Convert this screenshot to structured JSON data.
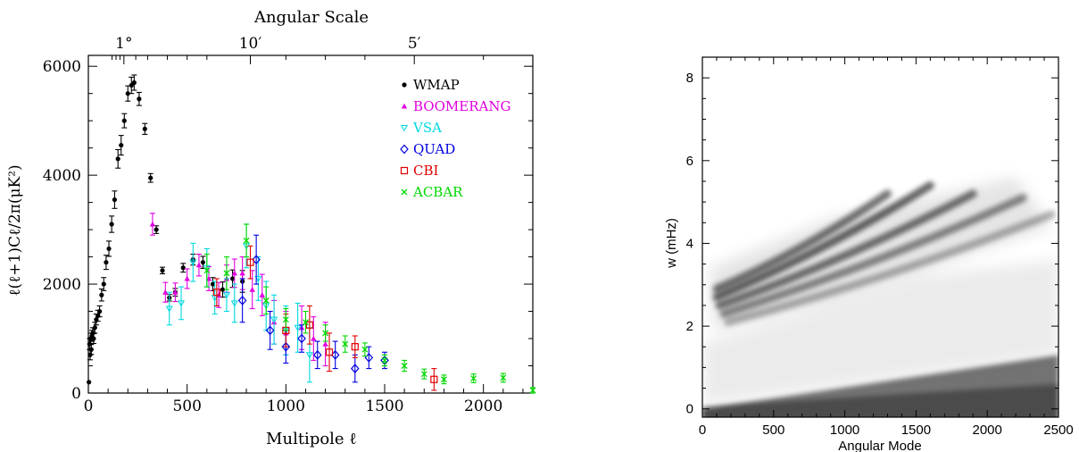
{
  "chart_data": [
    {
      "type": "scatter",
      "title": "",
      "top_axis_label": "Angular Scale",
      "top_ticks": [
        {
          "l": 180,
          "label": "1°"
        },
        {
          "l": 820,
          "label": "10′"
        },
        {
          "l": 1650,
          "label": "5′"
        }
      ],
      "xlabel": "Multipole ℓ",
      "ylabel": "ℓ(ℓ+1)Cℓ/2π(μK²)",
      "xlim": [
        0,
        2250
      ],
      "ylim": [
        0,
        6200
      ],
      "xticks": [
        0,
        500,
        1000,
        1500,
        2000
      ],
      "yticks": [
        0,
        2000,
        4000,
        6000
      ],
      "legend_position": "top-right",
      "series": [
        {
          "name": "WMAP",
          "color": "#000000",
          "marker": "dot",
          "points": [
            [
              3,
              200
            ],
            [
              6,
              900
            ],
            [
              9,
              700
            ],
            [
              12,
              1000
            ],
            [
              15,
              800
            ],
            [
              18,
              1050
            ],
            [
              22,
              1100
            ],
            [
              27,
              1000
            ],
            [
              33,
              1200
            ],
            [
              40,
              1350
            ],
            [
              48,
              1420
            ],
            [
              57,
              1500
            ],
            [
              67,
              1800
            ],
            [
              78,
              2000
            ],
            [
              90,
              2400
            ],
            [
              104,
              2650
            ],
            [
              118,
              3100
            ],
            [
              133,
              3550
            ],
            [
              150,
              4300
            ],
            [
              166,
              4550
            ],
            [
              182,
              5000
            ],
            [
              200,
              5500
            ],
            [
              218,
              5650
            ],
            [
              232,
              5700
            ],
            [
              257,
              5400
            ],
            [
              286,
              4850
            ],
            [
              315,
              3950
            ],
            [
              344,
              3000
            ],
            [
              375,
              2250
            ],
            [
              410,
              1750
            ],
            [
              440,
              1850
            ],
            [
              480,
              2300
            ],
            [
              530,
              2450
            ],
            [
              580,
              2400
            ],
            [
              630,
              2000
            ],
            [
              680,
              1900
            ],
            [
              730,
              2100
            ],
            [
              780,
              2050
            ]
          ],
          "errors": [
            0,
            100,
            90,
            100,
            90,
            100,
            100,
            90,
            100,
            100,
            100,
            100,
            110,
            120,
            130,
            140,
            150,
            160,
            170,
            180,
            130,
            140,
            150,
            140,
            120,
            100,
            80,
            70,
            60,
            60,
            70,
            80,
            100,
            110,
            120,
            140,
            160,
            200
          ]
        },
        {
          "name": "BOOMERANG",
          "color": "#e000e0",
          "marker": "triangle-up",
          "points": [
            [
              325,
              3100
            ],
            [
              390,
              1850
            ],
            [
              440,
              1850
            ],
            [
              500,
              2100
            ],
            [
              560,
              2350
            ],
            [
              610,
              2100
            ],
            [
              660,
              1800
            ],
            [
              700,
              2100
            ],
            [
              740,
              2200
            ],
            [
              780,
              2200
            ],
            [
              830,
              1900
            ],
            [
              880,
              1800
            ],
            [
              940,
              1300
            ],
            [
              1000,
              1100
            ],
            [
              1080,
              1200
            ],
            [
              1140,
              1000
            ],
            [
              1200,
              900
            ]
          ],
          "errors": [
            200,
            180,
            170,
            180,
            200,
            220,
            230,
            250,
            260,
            300,
            350,
            380,
            400,
            400,
            400,
            400,
            400
          ]
        },
        {
          "name": "VSA",
          "color": "#00d8e0",
          "marker": "triangle-down",
          "points": [
            [
              410,
              1550
            ],
            [
              470,
              1650
            ],
            [
              530,
              2400
            ],
            [
              600,
              2300
            ],
            [
              640,
              1750
            ],
            [
              700,
              1800
            ],
            [
              740,
              1650
            ],
            [
              800,
              2700
            ],
            [
              860,
              2100
            ],
            [
              900,
              1600
            ],
            [
              940,
              1350
            ],
            [
              1000,
              1150
            ],
            [
              1060,
              1200
            ],
            [
              1120,
              700
            ]
          ],
          "errors": [
            300,
            300,
            350,
            350,
            300,
            300,
            350,
            400,
            400,
            450,
            450,
            450,
            450,
            500
          ]
        },
        {
          "name": "QUAD",
          "color": "#0000e0",
          "marker": "diamond",
          "points": [
            [
              780,
              1700
            ],
            [
              850,
              2450
            ],
            [
              920,
              1150
            ],
            [
              1000,
              850
            ],
            [
              1080,
              1000
            ],
            [
              1160,
              700
            ],
            [
              1250,
              700
            ],
            [
              1350,
              450
            ],
            [
              1420,
              650
            ],
            [
              1500,
              600
            ]
          ],
          "errors": [
            400,
            450,
            350,
            300,
            250,
            250,
            250,
            250,
            200,
            150
          ]
        },
        {
          "name": "CBI",
          "color": "#e00000",
          "marker": "square",
          "points": [
            [
              650,
              1850
            ],
            [
              820,
              2400
            ],
            [
              1000,
              1150
            ],
            [
              1120,
              1250
            ],
            [
              1220,
              750
            ],
            [
              1350,
              850
            ],
            [
              1750,
              250
            ]
          ],
          "errors": [
            250,
            300,
            300,
            350,
            350,
            200,
            200
          ]
        },
        {
          "name": "ACBAR",
          "color": "#00d800",
          "marker": "x",
          "points": [
            [
              600,
              2250
            ],
            [
              700,
              2200
            ],
            [
              800,
              2800
            ],
            [
              900,
              1700
            ],
            [
              1000,
              1350
            ],
            [
              1100,
              1300
            ],
            [
              1200,
              1100
            ],
            [
              1300,
              900
            ],
            [
              1400,
              800
            ],
            [
              1500,
              600
            ],
            [
              1600,
              500
            ],
            [
              1700,
              350
            ],
            [
              1800,
              250
            ],
            [
              1950,
              270
            ],
            [
              2100,
              280
            ],
            [
              2250,
              50
            ]
          ],
          "errors": [
            300,
            300,
            300,
            250,
            200,
            200,
            150,
            150,
            120,
            100,
            100,
            90,
            80,
            80,
            80,
            50
          ]
        }
      ]
    },
    {
      "type": "heatmap",
      "title": "",
      "xlabel": "Angular Mode",
      "ylabel": "w (mHz)",
      "xlim": [
        0,
        2500
      ],
      "ylim": [
        -0.2,
        8.5
      ],
      "xticks": [
        0,
        500,
        1000,
        1500,
        2000,
        2500
      ],
      "yticks": [
        0,
        2,
        4,
        6,
        8
      ],
      "colormap": "grayscale (white = low power, black = high power)",
      "ridges": [
        {
          "mode_start": 100,
          "w_start": 2.9,
          "mode_end": 1300,
          "w_end": 5.2,
          "strength": 0.55
        },
        {
          "mode_start": 100,
          "w_start": 2.7,
          "mode_end": 1600,
          "w_end": 5.4,
          "strength": 0.6
        },
        {
          "mode_start": 120,
          "w_start": 2.5,
          "mode_end": 1900,
          "w_end": 5.2,
          "strength": 0.55
        },
        {
          "mode_start": 150,
          "w_start": 2.3,
          "mode_end": 2250,
          "w_end": 5.1,
          "strength": 0.45
        },
        {
          "mode_start": 180,
          "w_start": 2.1,
          "mode_end": 2450,
          "w_end": 4.7,
          "strength": 0.3
        }
      ],
      "low_band": {
        "mode_start": 0,
        "w_start": 0,
        "mode_end": 2500,
        "w_end": 1.3,
        "strength": 0.8
      }
    }
  ]
}
